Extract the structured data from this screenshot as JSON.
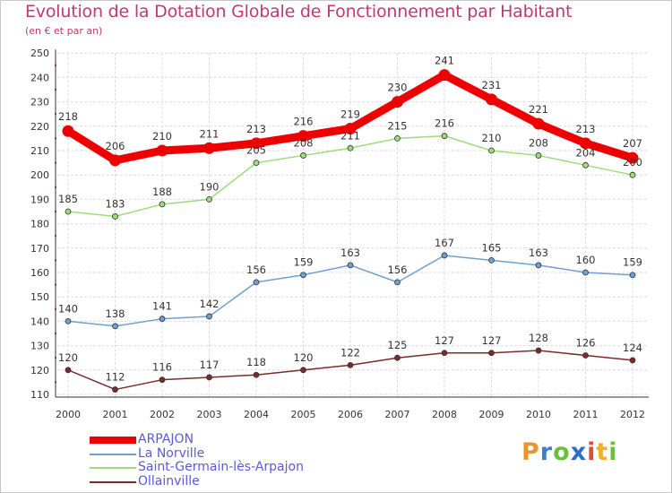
{
  "header": {
    "title": "Evolution de la Dotation Globale de Fonctionnement par Habitant",
    "subtitle": "(en € et par an)"
  },
  "logo": {
    "letters": [
      "P",
      "r",
      "o",
      "x",
      "i",
      "t",
      "i"
    ],
    "colors": [
      "#e8962c",
      "#3f7fd0",
      "#6cbf3a",
      "#2c6fc8",
      "#e24a3c",
      "#f0b02a",
      "#6cbf3a"
    ]
  },
  "chart_data": {
    "type": "line",
    "x": [
      "2000",
      "2001",
      "2002",
      "2003",
      "2004",
      "2005",
      "2006",
      "2007",
      "2008",
      "2009",
      "2010",
      "2011",
      "2012"
    ],
    "ylim": [
      110,
      250
    ],
    "yticks": [
      110,
      120,
      130,
      140,
      150,
      160,
      170,
      180,
      190,
      200,
      210,
      220,
      230,
      240,
      250
    ],
    "grid": true,
    "legend_position": "bottom-left",
    "series": [
      {
        "name": "ARPAJON",
        "color": "#ee0000",
        "values": [
          218,
          206,
          210,
          211,
          213,
          216,
          219,
          230,
          241,
          231,
          221,
          213,
          207
        ]
      },
      {
        "name": "La Norville",
        "color": "#6fa0cf",
        "values": [
          140,
          138,
          141,
          142,
          156,
          159,
          163,
          156,
          167,
          165,
          163,
          160,
          159
        ]
      },
      {
        "name": "Saint-Germain-lès-Arpajon",
        "color": "#9ddc7c",
        "values": [
          185,
          183,
          188,
          190,
          205,
          208,
          211,
          215,
          216,
          210,
          208,
          204,
          200
        ]
      },
      {
        "name": "Ollainville",
        "color": "#7a2c2c",
        "values": [
          120,
          112,
          116,
          117,
          118,
          120,
          122,
          125,
          127,
          127,
          128,
          126,
          124
        ]
      }
    ]
  }
}
